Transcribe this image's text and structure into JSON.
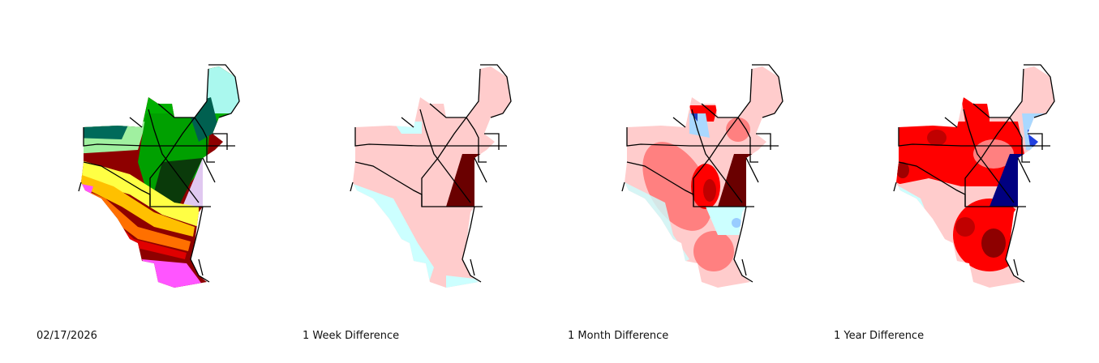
{
  "panels": [
    {
      "caption": "02/17/2026"
    },
    {
      "caption": "1 Week Difference"
    },
    {
      "caption": "1 Month Difference"
    },
    {
      "caption": "1 Year Difference"
    }
  ]
}
